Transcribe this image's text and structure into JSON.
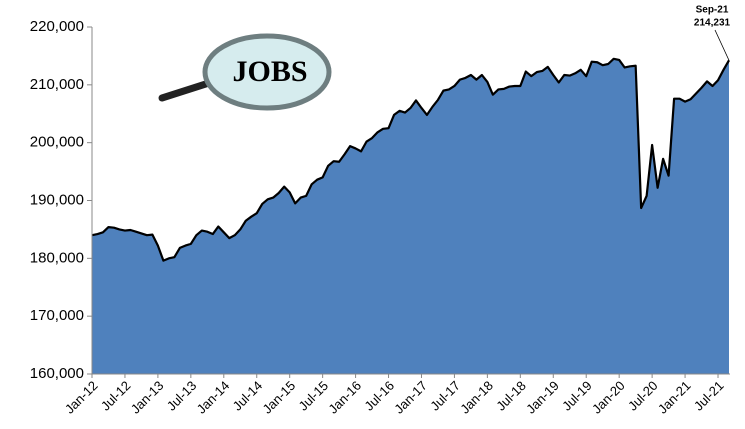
{
  "chart_data": {
    "type": "area",
    "logo_text": "JOBS",
    "categories": [
      "Jan-12",
      null,
      null,
      null,
      null,
      null,
      "Jul-12",
      null,
      null,
      null,
      null,
      null,
      "Jan-13",
      null,
      null,
      null,
      null,
      null,
      "Jul-13",
      null,
      null,
      null,
      null,
      null,
      "Jan-14",
      null,
      null,
      null,
      null,
      null,
      "Jul-14",
      null,
      null,
      null,
      null,
      null,
      "Jan-15",
      null,
      null,
      null,
      null,
      null,
      "Jul-15",
      null,
      null,
      null,
      null,
      null,
      "Jan-16",
      null,
      null,
      null,
      null,
      null,
      "Jul-16",
      null,
      null,
      null,
      null,
      null,
      "Jan-17",
      null,
      null,
      null,
      null,
      null,
      "Jul-17",
      null,
      null,
      null,
      null,
      null,
      "Jan-18",
      null,
      null,
      null,
      null,
      null,
      "Jul-18",
      null,
      null,
      null,
      null,
      null,
      "Jan-19",
      null,
      null,
      null,
      null,
      null,
      "Jul-19",
      null,
      null,
      null,
      null,
      null,
      "Jan-20",
      null,
      null,
      null,
      null,
      null,
      "Jul-20",
      null,
      null,
      null,
      null,
      null,
      "Jan-21",
      null,
      null,
      null,
      null,
      null,
      "Jul-21",
      null,
      null
    ],
    "values": [
      184000,
      184200,
      184500,
      185400,
      185300,
      185000,
      184800,
      184900,
      184600,
      184300,
      184000,
      184100,
      182200,
      179600,
      180000,
      180200,
      181800,
      182200,
      182500,
      184000,
      184800,
      184600,
      184200,
      185500,
      184500,
      183500,
      184000,
      185000,
      186500,
      187200,
      187800,
      189400,
      190200,
      190500,
      191300,
      192400,
      191400,
      189500,
      190500,
      190800,
      192800,
      193600,
      194000,
      196000,
      196800,
      196700,
      198000,
      199400,
      199000,
      198500,
      200200,
      200800,
      201800,
      202400,
      202500,
      204800,
      205500,
      205200,
      206000,
      207300,
      206000,
      204800,
      206200,
      207400,
      209000,
      209200,
      209800,
      210900,
      211200,
      211700,
      210900,
      211700,
      210500,
      208300,
      209200,
      209300,
      209700,
      209800,
      209800,
      212300,
      211500,
      212200,
      212400,
      213100,
      211700,
      210400,
      211700,
      211600,
      212000,
      212600,
      211500,
      214000,
      213900,
      213400,
      213600,
      214500,
      214300,
      213000,
      213200,
      213300,
      188700,
      190800,
      199600,
      192200,
      197200,
      194300,
      207600,
      207600,
      207100,
      207500,
      208500,
      209500,
      210600,
      209800,
      210800,
      212600,
      214231
    ],
    "value_labels": [
      null,
      null,
      null,
      null,
      null,
      null,
      null,
      null,
      null,
      null,
      null,
      null,
      null,
      null,
      null,
      null,
      null,
      null,
      null,
      null,
      null,
      null,
      null,
      null,
      null,
      null,
      null,
      null,
      null,
      null,
      null,
      null,
      null,
      null,
      null,
      null,
      null,
      null,
      null,
      null,
      null,
      null,
      null,
      null,
      null,
      null,
      null,
      null,
      null,
      null,
      null,
      null,
      null,
      null,
      null,
      null,
      null,
      null,
      null,
      null,
      null,
      null,
      null,
      null,
      null,
      null,
      null,
      null,
      null,
      null,
      null,
      null,
      null,
      null,
      null,
      null,
      null,
      null,
      null,
      null,
      null,
      null,
      null,
      null,
      null,
      null,
      null,
      null,
      null,
      null,
      null,
      null,
      null,
      null,
      null,
      null,
      null,
      null,
      null,
      null,
      null,
      null,
      null,
      null,
      null,
      null,
      null,
      null,
      null,
      null,
      null,
      null,
      null,
      null,
      null,
      null,
      "214,231"
    ],
    "annotation_label": "Sep-21",
    "color": "#4f81bd",
    "ylim": [
      160000,
      220000
    ],
    "yticks": [
      {
        "value": 160000,
        "label": "160,000"
      },
      {
        "value": 170000,
        "label": "170,000"
      },
      {
        "value": 180000,
        "label": "180,000"
      },
      {
        "value": 190000,
        "label": "190,000"
      },
      {
        "value": 200000,
        "label": "200,000"
      },
      {
        "value": 210000,
        "label": "210,000"
      },
      {
        "value": 220000,
        "label": "220,000"
      }
    ],
    "grid": false
  }
}
